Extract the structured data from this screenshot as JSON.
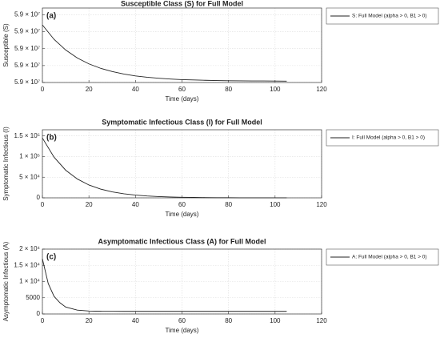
{
  "chart_data": [
    {
      "type": "line",
      "title": "Susceptible Class (S) for Full Model",
      "annotation": "(a)",
      "xlabel": "Time (days)",
      "ylabel": "Susceptible (S)",
      "x": [
        0,
        5,
        10,
        15,
        20,
        25,
        30,
        35,
        40,
        45,
        50,
        55,
        60,
        65,
        70,
        75,
        80,
        85,
        90,
        95,
        100,
        105
      ],
      "series": [
        {
          "name": "S: Full Model (alpha > 0, B1 > 0)",
          "color": "#222222",
          "values": [
            59002800,
            59001100,
            58999840,
            58998900,
            58998200,
            58997680,
            58997290,
            58997000,
            58996780,
            58996620,
            58996500,
            58996410,
            58996340,
            58996300,
            58996260,
            58996230,
            58996210,
            58996200,
            58996180,
            58996180,
            58996170,
            58996160
          ]
        }
      ],
      "xlim": [
        0,
        120
      ],
      "xticks": [
        0,
        20,
        40,
        60,
        80,
        100,
        120
      ],
      "ylim": [
        58996000,
        59004800
      ],
      "yticks": [
        {
          "value": 58996000,
          "label": "5.9 × 10⁷"
        },
        {
          "value": 58998000,
          "label": "5.9 × 10⁷"
        },
        {
          "value": 59000000,
          "label": "5.9 × 10⁷"
        },
        {
          "value": 59002000,
          "label": "5.9 × 10⁷"
        },
        {
          "value": 59004000,
          "label": "5.9 × 10⁷"
        }
      ],
      "grid": true,
      "legend": "outside right"
    },
    {
      "type": "line",
      "title": "Symptomatic Infectious Class (I) for Full Model",
      "annotation": "(b)",
      "xlabel": "Time (days)",
      "ylabel": "Symptomatic Infectious (I)",
      "x": [
        0,
        5,
        10,
        15,
        20,
        25,
        30,
        35,
        40,
        45,
        50,
        55,
        60,
        65,
        70,
        75,
        80,
        85,
        90,
        95,
        100,
        105
      ],
      "series": [
        {
          "name": "I: Full Model (alpha > 0, B1 > 0)",
          "color": "#222222",
          "values": [
            145000,
            98600,
            67000,
            45700,
            31100,
            21200,
            14400,
            9800,
            6700,
            4500,
            3100,
            2100,
            1400,
            980,
            660,
            450,
            310,
            210,
            140,
            100,
            65,
            45
          ]
        }
      ],
      "xlim": [
        0,
        120
      ],
      "xticks": [
        0,
        20,
        40,
        60,
        80,
        100,
        120
      ],
      "ylim": [
        0,
        165000
      ],
      "yticks": [
        0,
        {
          "value": 50000,
          "label": "5 × 10⁴"
        },
        {
          "value": 100000,
          "label": "1 × 10⁵"
        },
        {
          "value": 150000,
          "label": "1.5 × 10⁵"
        }
      ],
      "grid": true,
      "legend": "outside right"
    },
    {
      "type": "line",
      "title": "Asymptomatic Infectious Class (A) for Full Model",
      "annotation": "(c)",
      "xlabel": "Time (days)",
      "ylabel": "Asymptomatic Infectious (A)",
      "x": [
        0,
        2.5,
        5,
        7.5,
        10,
        15,
        20,
        25,
        30,
        35,
        40,
        45,
        50,
        55,
        60,
        65,
        70,
        75,
        80,
        85,
        90,
        95,
        100,
        105
      ],
      "series": [
        {
          "name": "A: Full Model (alpha > 0, B1 > 0)",
          "color": "#222222",
          "values": [
            17000,
            9400,
            5440,
            3480,
            2130,
            1180,
            909,
            832,
            809,
            803,
            801,
            800,
            800,
            800,
            800,
            800,
            800,
            800,
            800,
            800,
            800,
            800,
            800,
            800
          ]
        }
      ],
      "xlim": [
        0,
        120
      ],
      "xticks": [
        0,
        20,
        40,
        60,
        80,
        100,
        120
      ],
      "ylim": [
        0,
        20000
      ],
      "yticks": [
        0,
        5000,
        {
          "value": 10000,
          "label": "1 × 10⁴"
        },
        {
          "value": 15000,
          "label": "1.5 × 10⁴"
        },
        {
          "value": 20000,
          "label": "2 × 10⁴"
        }
      ],
      "grid": true,
      "legend": "outside right"
    }
  ]
}
